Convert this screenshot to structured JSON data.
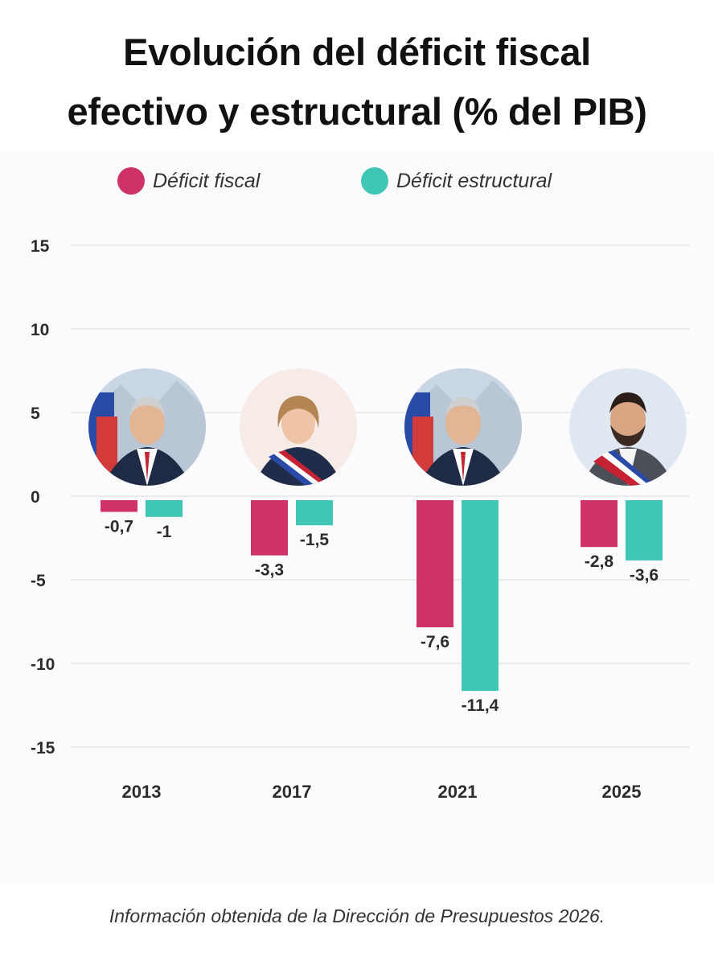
{
  "title_line1": "Evolución del déficit fiscal",
  "title_line2": "efectivo y estructural (% del PIB)",
  "source_note": "Información obtenida de la Dirección de Presupuestos 2026.",
  "colors": {
    "fiscal": "#cf3268",
    "estructural": "#3ec7b5"
  },
  "chart_data": {
    "type": "bar",
    "title": "Evolución del déficit fiscal efectivo y estructural (% del PIB)",
    "categories": [
      "2013",
      "2017",
      "2021",
      "2025"
    ],
    "series": [
      {
        "name": "Déficit fiscal",
        "values": [
          -0.7,
          -3.3,
          -7.6,
          -2.8
        ],
        "labels": [
          "-0,7",
          "-3,3",
          "-7,6",
          "-2,8"
        ]
      },
      {
        "name": "Déficit estructural",
        "values": [
          -1,
          -1.5,
          -11.4,
          -3.6
        ],
        "labels": [
          "-1",
          "-1,5",
          "-11,4",
          "-3,6"
        ]
      }
    ],
    "yticks": [
      "15",
      "10",
      "5",
      "0",
      "-5",
      "-10",
      "-15"
    ],
    "ylim": [
      -15,
      15
    ],
    "grid": true,
    "legend_position": "top"
  },
  "portraits": [
    {
      "year": "2013",
      "icon": "portrait-man-flag-icon"
    },
    {
      "year": "2017",
      "icon": "portrait-woman-presidential-sash-icon"
    },
    {
      "year": "2021",
      "icon": "portrait-man-flag-icon"
    },
    {
      "year": "2025",
      "icon": "portrait-man-presidential-sash-icon"
    }
  ]
}
